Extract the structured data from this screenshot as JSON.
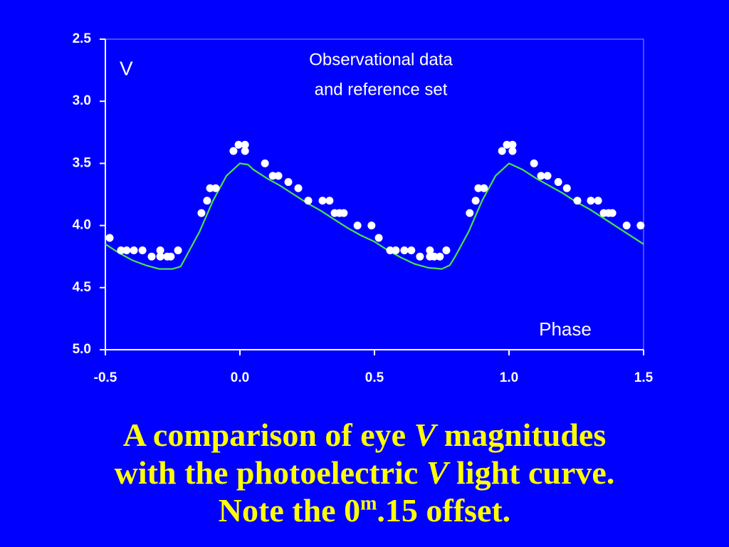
{
  "chart_data": {
    "type": "scatter",
    "y_label": "V",
    "x_label": "Phase",
    "annotation": [
      "Observational data",
      "and reference set"
    ],
    "xlim": [
      -0.5,
      1.5
    ],
    "xticks": [
      -0.5,
      {
        "value": 0,
        "label": "0.0"
      },
      0.5,
      {
        "value": 1,
        "label": "1.0"
      },
      1.5
    ],
    "ylim": [
      2.5,
      5.0
    ],
    "y_inverted": true,
    "yticks": [
      2.5,
      {
        "value": 3,
        "label": "3.0"
      },
      3.5,
      {
        "value": 4,
        "label": "4.0"
      },
      4.5,
      {
        "value": 5,
        "label": "5.0"
      }
    ],
    "series": [
      {
        "style": "markers",
        "color": "#ffffff",
        "x": [
          -0.484,
          -0.442,
          -0.421,
          -0.394,
          -0.362,
          -0.328,
          -0.296,
          -0.296,
          -0.27,
          -0.257,
          -0.23,
          -0.143,
          -0.122,
          -0.111,
          -0.09,
          -0.024,
          -0.005,
          0.019,
          0.019,
          0.093,
          0.122,
          0.143,
          0.18,
          0.217,
          0.254,
          0.307,
          0.333,
          0.352,
          0.37,
          0.386,
          0.437,
          0.489,
          0.516,
          0.558,
          0.579,
          0.611,
          0.637,
          0.669,
          0.706,
          0.706,
          0.722,
          0.743,
          0.767,
          0.854,
          0.876,
          0.886,
          0.907,
          0.974,
          0.992,
          1.013,
          1.013,
          1.093,
          1.119,
          1.143,
          1.183,
          1.215,
          1.254,
          1.304,
          1.331,
          1.352,
          1.37,
          1.384,
          1.437,
          1.489
        ],
        "values": [
          4.1,
          4.2,
          4.2,
          4.2,
          4.2,
          4.25,
          4.2,
          4.25,
          4.25,
          4.25,
          4.2,
          3.9,
          3.8,
          3.7,
          3.7,
          3.4,
          3.35,
          3.35,
          3.4,
          3.5,
          3.6,
          3.6,
          3.65,
          3.7,
          3.8,
          3.8,
          3.8,
          3.9,
          3.9,
          3.9,
          4.0,
          4.0,
          4.1,
          4.2,
          4.2,
          4.2,
          4.2,
          4.25,
          4.2,
          4.25,
          4.25,
          4.25,
          4.2,
          3.9,
          3.8,
          3.7,
          3.7,
          3.4,
          3.35,
          3.35,
          3.4,
          3.5,
          3.6,
          3.6,
          3.65,
          3.7,
          3.8,
          3.8,
          3.8,
          3.9,
          3.9,
          3.9,
          4.0,
          4.0
        ]
      },
      {
        "style": "line",
        "color": "#4de04d",
        "x": [
          -0.5,
          -0.45,
          -0.4,
          -0.35,
          -0.3,
          -0.25,
          -0.22,
          -0.2,
          -0.15,
          -0.1,
          -0.05,
          0,
          0.03,
          0.05,
          0.1,
          0.15,
          0.2,
          0.25,
          0.3,
          0.35,
          0.4,
          0.45,
          0.5,
          0.55,
          0.6,
          0.65,
          0.7,
          0.75,
          0.78,
          0.8,
          0.85,
          0.9,
          0.95,
          1.0,
          1.05,
          1.1,
          1.15,
          1.2,
          1.25,
          1.3,
          1.35,
          1.4,
          1.45,
          1.5
        ],
        "values": [
          4.15,
          4.22,
          4.28,
          4.32,
          4.35,
          4.35,
          4.33,
          4.25,
          4.05,
          3.8,
          3.6,
          3.5,
          3.51,
          3.55,
          3.62,
          3.68,
          3.75,
          3.82,
          3.88,
          3.95,
          4.02,
          4.08,
          4.13,
          4.2,
          4.26,
          4.31,
          4.34,
          4.35,
          4.32,
          4.25,
          4.05,
          3.8,
          3.6,
          3.5,
          3.55,
          3.62,
          3.68,
          3.74,
          3.81,
          3.87,
          3.94,
          4.01,
          4.08,
          4.15
        ]
      }
    ]
  },
  "caption": {
    "lines": [
      [
        "A comparison of eye ",
        "V",
        " magnitudes"
      ],
      [
        "with the photoelectric ",
        "V",
        " light curve."
      ],
      [
        "Note the 0",
        "m",
        ".15 offset."
      ]
    ]
  }
}
